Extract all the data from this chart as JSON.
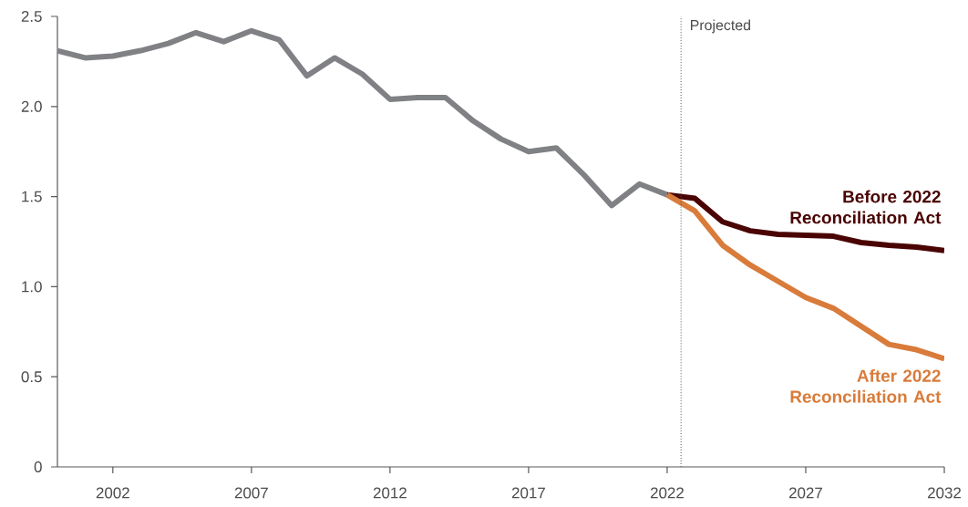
{
  "chart_data": {
    "type": "line",
    "x": [
      2000,
      2001,
      2002,
      2003,
      2004,
      2005,
      2006,
      2007,
      2008,
      2009,
      2010,
      2011,
      2012,
      2013,
      2014,
      2015,
      2016,
      2017,
      2018,
      2019,
      2020,
      2021,
      2022
    ],
    "series": [
      {
        "color": "#808184",
        "values": [
          2.31,
          2.27,
          2.28,
          2.31,
          2.35,
          2.41,
          2.36,
          2.42,
          2.37,
          2.17,
          2.27,
          2.18,
          2.04,
          2.05,
          2.05,
          1.92,
          1.82,
          1.75,
          1.77,
          1.62,
          1.45,
          1.57,
          1.51
        ]
      },
      {
        "name": "Before 2022 Reconciliation Act",
        "color": "#4a0404",
        "x": [
          2022,
          2023,
          2024,
          2025,
          2026,
          2027,
          2028,
          2029,
          2030,
          2031,
          2032
        ],
        "values": [
          1.51,
          1.49,
          1.36,
          1.31,
          1.29,
          1.285,
          1.28,
          1.245,
          1.23,
          1.22,
          1.2
        ]
      },
      {
        "name": "After 2022 Reconciliation Act",
        "color": "#d97b3a",
        "x": [
          2022,
          2023,
          2024,
          2025,
          2026,
          2027,
          2028,
          2029,
          2030,
          2031,
          2032
        ],
        "values": [
          1.51,
          1.42,
          1.23,
          1.12,
          1.03,
          0.94,
          0.88,
          0.78,
          0.68,
          0.65,
          0.6
        ]
      }
    ],
    "xlim": [
      2000,
      2032
    ],
    "ylim": [
      0,
      2.5
    ],
    "xticks": [
      2002,
      2007,
      2012,
      2017,
      2022,
      2027,
      2032
    ],
    "yticks": [
      0,
      0.5,
      {
        "value": 1,
        "label": "1.0"
      },
      1.5,
      {
        "value": 2,
        "label": "2.0"
      },
      2.5
    ],
    "ref_lines": [
      {
        "axis": "x",
        "value": 2022.5,
        "label": "Projected",
        "color": "#555555",
        "line_style": "dotted"
      }
    ],
    "grid": false,
    "legend": false,
    "line_style": "solid",
    "marker": "none"
  }
}
